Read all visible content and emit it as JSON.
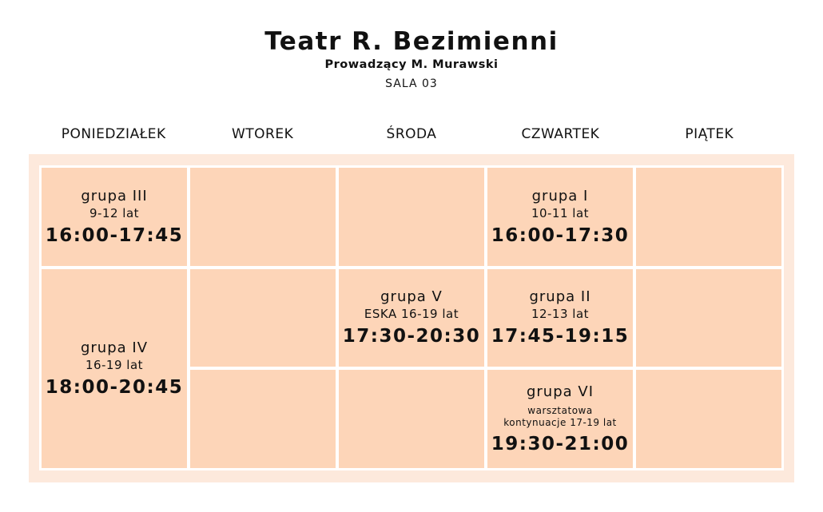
{
  "header": {
    "title": "Teatr R. Bezimienni",
    "subtitle": "Prowadzący M. Murawski",
    "room": "SALA 03"
  },
  "days": [
    "PONIEDZIAŁEK",
    "WTOREK",
    "ŚRODA",
    "CZWARTEK",
    "PIĄTEK"
  ],
  "sessions": {
    "mon1": {
      "group": "grupa III",
      "age": "9-12 lat",
      "time": "16:00-17:45"
    },
    "mon2": {
      "group": "grupa IV",
      "age": "16-19 lat",
      "time": "18:00-20:45"
    },
    "wed2": {
      "group": "grupa V",
      "age": "ESKA 16-19 lat",
      "time": "17:30-20:30"
    },
    "thu1": {
      "group": "grupa I",
      "age": "10-11 lat",
      "time": "16:00-17:30"
    },
    "thu2": {
      "group": "grupa II",
      "age": "12-13 lat",
      "time": "17:45-19:15"
    },
    "thu3": {
      "group": "grupa VI",
      "age_line1": "warsztatowa",
      "age_line2": "kontynuacje 17-19 lat",
      "time": "19:30-21:00"
    }
  },
  "colors": {
    "cell": "#fdd5b8",
    "frame": "#fde9dc"
  }
}
